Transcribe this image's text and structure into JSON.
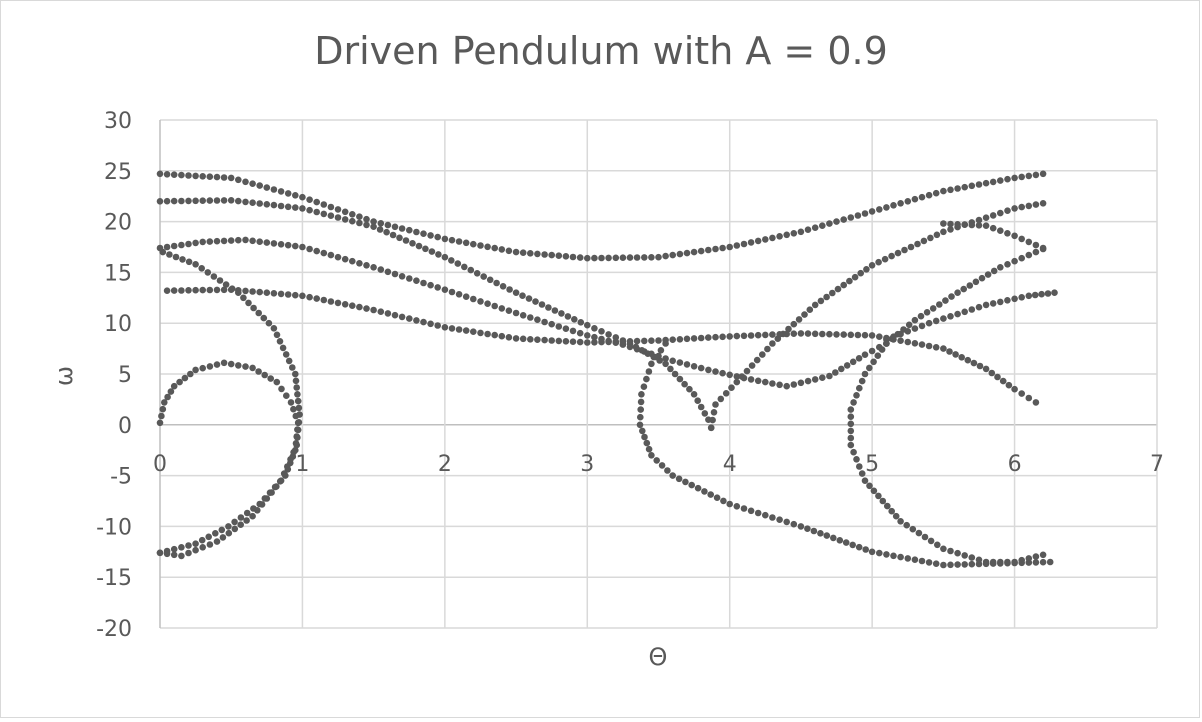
{
  "chart_data": {
    "type": "scatter",
    "title": "Driven Pendulum with A = 0.9",
    "xlabel": "Θ",
    "ylabel": "ω",
    "xlim": [
      0,
      7
    ],
    "ylim": [
      -20,
      30
    ],
    "xticks": [
      0,
      1,
      2,
      3,
      4,
      5,
      6,
      7
    ],
    "yticks": [
      -20,
      -15,
      -10,
      -5,
      0,
      5,
      10,
      15,
      20,
      25,
      30
    ],
    "grid": true,
    "legend": "none",
    "marker_color": "#595959",
    "series": [
      {
        "points": [
          [
            0.0,
            0.2
          ],
          [
            0.03,
            2.2
          ],
          [
            0.1,
            3.8
          ],
          [
            0.25,
            5.4
          ],
          [
            0.45,
            6.1
          ],
          [
            0.65,
            5.6
          ],
          [
            0.82,
            4.2
          ],
          [
            0.92,
            2.2
          ],
          [
            0.97,
            0.2
          ]
        ]
      },
      {
        "points": [
          [
            0.97,
            0.2
          ],
          [
            0.95,
            -2.5
          ],
          [
            0.88,
            -5.0
          ],
          [
            0.7,
            -7.8
          ],
          [
            0.48,
            -10.0
          ],
          [
            0.25,
            -11.7
          ],
          [
            0.0,
            -12.6
          ]
        ]
      },
      {
        "points": [
          [
            0.0,
            -12.6
          ],
          [
            0.15,
            -12.9
          ],
          [
            0.4,
            -11.5
          ],
          [
            0.65,
            -9.0
          ],
          [
            0.85,
            -5.5
          ],
          [
            0.96,
            -2.0
          ],
          [
            0.98,
            1.0
          ],
          [
            0.95,
            5.0
          ],
          [
            0.8,
            9.5
          ],
          [
            0.55,
            13.0
          ],
          [
            0.25,
            15.8
          ],
          [
            0.02,
            17.0
          ]
        ]
      },
      {
        "points": [
          [
            0.0,
            17.4
          ],
          [
            0.3,
            18.0
          ],
          [
            0.6,
            18.2
          ],
          [
            1.0,
            17.5
          ],
          [
            1.5,
            15.5
          ],
          [
            2.0,
            13.3
          ],
          [
            2.5,
            11.0
          ],
          [
            3.0,
            8.8
          ],
          [
            3.25,
            7.9
          ]
        ]
      },
      {
        "points": [
          [
            3.25,
            7.9
          ],
          [
            3.6,
            6.3
          ],
          [
            3.85,
            5.4
          ],
          [
            4.1,
            4.6
          ],
          [
            4.4,
            3.8
          ],
          [
            4.7,
            4.8
          ],
          [
            4.95,
            6.9
          ],
          [
            5.1,
            8.0
          ]
        ]
      },
      {
        "points": [
          [
            5.1,
            8.0
          ],
          [
            5.3,
            10.3
          ],
          [
            5.6,
            13.0
          ],
          [
            5.9,
            15.5
          ],
          [
            6.2,
            17.3
          ]
        ]
      },
      {
        "points": [
          [
            0.0,
            22.0
          ],
          [
            0.5,
            22.1
          ],
          [
            1.0,
            21.3
          ],
          [
            1.5,
            19.5
          ],
          [
            2.0,
            16.5
          ],
          [
            2.5,
            13.0
          ],
          [
            3.0,
            9.8
          ],
          [
            3.3,
            8.0
          ],
          [
            3.55,
            6.0
          ],
          [
            3.75,
            3.0
          ],
          [
            3.85,
            0.5
          ],
          [
            3.87,
            -0.3
          ]
        ]
      },
      {
        "points": [
          [
            3.87,
            -0.3
          ],
          [
            3.9,
            2.0
          ],
          [
            4.05,
            4.2
          ],
          [
            4.3,
            8.0
          ],
          [
            4.6,
            11.8
          ],
          [
            5.0,
            15.7
          ],
          [
            5.5,
            19.0
          ],
          [
            6.0,
            21.3
          ],
          [
            6.2,
            21.8
          ]
        ]
      },
      {
        "points": [
          [
            0.0,
            24.7
          ],
          [
            0.5,
            24.3
          ],
          [
            1.0,
            22.4
          ],
          [
            1.5,
            20.0
          ],
          [
            2.0,
            18.3
          ],
          [
            2.5,
            17.0
          ],
          [
            3.0,
            16.4
          ],
          [
            3.5,
            16.5
          ],
          [
            4.0,
            17.5
          ],
          [
            4.5,
            19.0
          ],
          [
            5.0,
            21.0
          ],
          [
            5.5,
            23.0
          ],
          [
            6.0,
            24.3
          ],
          [
            6.2,
            24.7
          ]
        ]
      },
      {
        "points": [
          [
            0.05,
            13.2
          ],
          [
            0.5,
            13.3
          ],
          [
            1.0,
            12.7
          ],
          [
            1.5,
            11.3
          ],
          [
            2.0,
            9.6
          ],
          [
            2.5,
            8.5
          ],
          [
            3.0,
            8.1
          ],
          [
            3.5,
            8.3
          ],
          [
            4.0,
            8.7
          ],
          [
            4.5,
            9.0
          ],
          [
            5.0,
            8.8
          ],
          [
            5.5,
            7.5
          ],
          [
            5.8,
            5.5
          ],
          [
            6.0,
            3.5
          ],
          [
            6.15,
            2.2
          ]
        ]
      },
      {
        "points": [
          [
            3.55,
            8.0
          ],
          [
            3.45,
            6.0
          ],
          [
            3.38,
            3.0
          ],
          [
            3.37,
            0.0
          ],
          [
            3.45,
            -3.0
          ],
          [
            3.6,
            -5.0
          ],
          [
            4.0,
            -7.8
          ],
          [
            4.5,
            -10.0
          ],
          [
            5.0,
            -12.5
          ],
          [
            5.5,
            -13.8
          ],
          [
            6.0,
            -13.6
          ],
          [
            6.25,
            -13.5
          ]
        ]
      },
      {
        "points": [
          [
            5.1,
            8.0
          ],
          [
            4.95,
            5.0
          ],
          [
            4.85,
            1.5
          ],
          [
            4.85,
            -2.0
          ],
          [
            4.95,
            -5.5
          ],
          [
            5.2,
            -9.5
          ],
          [
            5.5,
            -12.2
          ],
          [
            5.8,
            -13.5
          ],
          [
            6.0,
            -13.5
          ],
          [
            6.2,
            -12.8
          ]
        ]
      },
      {
        "points": [
          [
            5.5,
            19.8
          ],
          [
            5.8,
            19.6
          ],
          [
            6.0,
            18.6
          ],
          [
            6.2,
            17.4
          ]
        ]
      },
      {
        "points": [
          [
            5.1,
            8.4
          ],
          [
            5.4,
            10.0
          ],
          [
            5.8,
            11.8
          ],
          [
            6.1,
            12.7
          ],
          [
            6.28,
            13.0
          ]
        ]
      }
    ]
  }
}
